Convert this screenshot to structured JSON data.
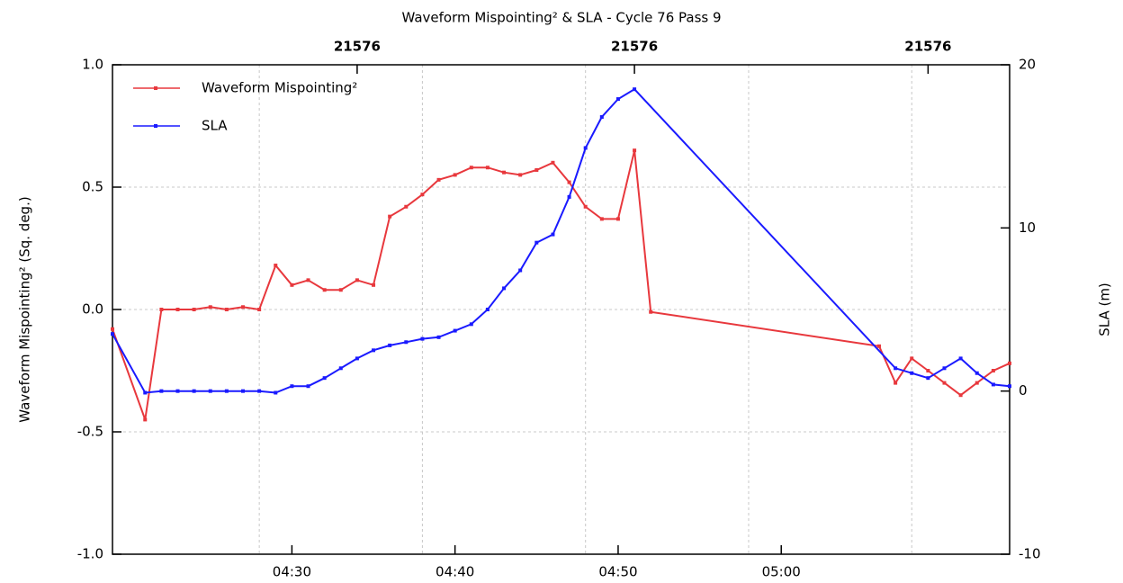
{
  "chart_data": {
    "type": "line",
    "title": "Waveform Mispointing² & SLA - Cycle 76 Pass 9",
    "ylabel": "Waveform Mispointing² (Sq. deg.)",
    "y2label": "SLA (m)",
    "xlim": [
      "04:19",
      "05:14"
    ],
    "xticks": [
      "04:30",
      "04:40",
      "04:50",
      "05:00"
    ],
    "xgrid": [
      "04:28",
      "04:38",
      "04:48",
      "04:58",
      "05:08"
    ],
    "top_labels": [
      {
        "value": "04:34",
        "label": "21576"
      },
      {
        "value": "04:51",
        "label": "21576"
      },
      {
        "value": "05:09",
        "label": "21576"
      }
    ],
    "ylim": [
      -1,
      1
    ],
    "yticks": [
      {
        "value": -1,
        "label": "-1.0"
      },
      -0.5,
      {
        "value": 0,
        "label": "0.0"
      },
      0.5,
      {
        "value": 1,
        "label": "1.0"
      }
    ],
    "y2lim": [
      -10,
      20
    ],
    "y2ticks": [
      -10,
      0,
      10,
      20
    ],
    "grid": true,
    "legend": "upper left",
    "series": [
      {
        "name": "Waveform Mispointing²",
        "color": "#e8383d",
        "x": [
          "04:19",
          "04:21",
          "04:22",
          "04:23",
          "04:24",
          "04:25",
          "04:26",
          "04:27",
          "04:28",
          "04:29",
          "04:30",
          "04:31",
          "04:32",
          "04:33",
          "04:34",
          "04:35",
          "04:36",
          "04:37",
          "04:38",
          "04:39",
          "04:40",
          "04:41",
          "04:42",
          "04:43",
          "04:44",
          "04:45",
          "04:46",
          "04:47",
          "04:48",
          "04:49",
          "04:50",
          "04:51",
          "04:52",
          "05:06",
          "05:07",
          "05:08",
          "05:09",
          "05:10",
          "05:11",
          "05:12",
          "05:13",
          "05:14"
        ],
        "values": [
          -0.08,
          -0.45,
          0.0,
          0.0,
          0.0,
          0.01,
          0.0,
          0.01,
          0.0,
          0.18,
          0.1,
          0.12,
          0.08,
          0.08,
          0.12,
          0.1,
          0.38,
          0.42,
          0.47,
          0.53,
          0.55,
          0.58,
          0.58,
          0.56,
          0.55,
          0.57,
          0.6,
          0.52,
          0.42,
          0.37,
          0.37,
          0.65,
          -0.01,
          -0.15,
          -0.3,
          -0.2,
          -0.25,
          -0.3,
          -0.35,
          -0.3,
          -0.25,
          -0.22
        ]
      },
      {
        "name": "SLA",
        "color": "#1a1aff",
        "axis": "y2",
        "x": [
          "04:19",
          "04:21",
          "04:22",
          "04:23",
          "04:24",
          "04:25",
          "04:26",
          "04:27",
          "04:28",
          "04:29",
          "04:30",
          "04:31",
          "04:32",
          "04:33",
          "04:34",
          "04:35",
          "04:36",
          "04:37",
          "04:38",
          "04:39",
          "04:40",
          "04:41",
          "04:42",
          "04:43",
          "04:44",
          "04:45",
          "04:46",
          "04:47",
          "04:48",
          "04:49",
          "04:50",
          "04:51",
          "05:07",
          "05:08",
          "05:09",
          "05:10",
          "05:11",
          "05:12",
          "05:13",
          "05:14"
        ],
        "values": [
          3.5,
          -0.1,
          0,
          0,
          0,
          0,
          0,
          0,
          0,
          -0.1,
          0.3,
          0.3,
          0.8,
          1.4,
          2.0,
          2.5,
          2.8,
          3.0,
          3.2,
          3.3,
          3.7,
          4.1,
          5.0,
          6.3,
          7.4,
          9.1,
          9.6,
          11.9,
          14.9,
          16.8,
          17.9,
          18.5,
          1.4,
          1.1,
          0.8,
          1.4,
          2.0,
          1.1,
          0.4,
          0.3
        ]
      }
    ]
  }
}
